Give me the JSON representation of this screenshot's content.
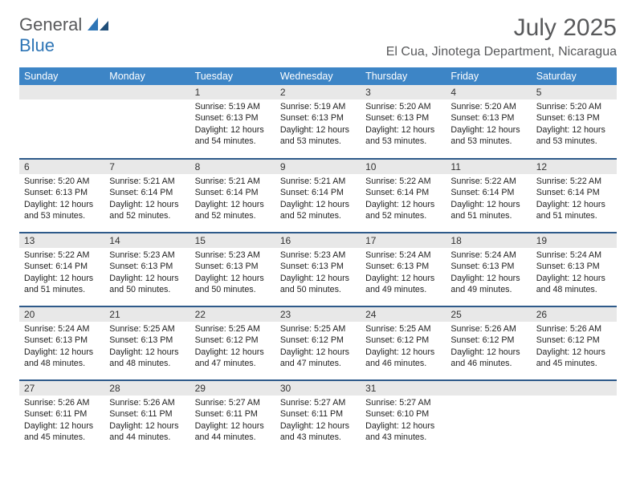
{
  "logo": {
    "text1": "General",
    "text2": "Blue",
    "gray_color": "#58595b",
    "blue_color": "#2e75b6"
  },
  "header": {
    "month_title": "July 2025",
    "location": "El Cua, Jinotega Department, Nicaragua"
  },
  "styling": {
    "header_bg": "#3d85c6",
    "header_fg": "#ffffff",
    "daynum_bg": "#e8e8e8",
    "week_border": "#2e5a8a",
    "body_fontsize": 10.7,
    "header_fontsize": 12.5
  },
  "weekdays": [
    "Sunday",
    "Monday",
    "Tuesday",
    "Wednesday",
    "Thursday",
    "Friday",
    "Saturday"
  ],
  "weeks": [
    [
      null,
      null,
      {
        "num": "1",
        "sunrise": "Sunrise: 5:19 AM",
        "sunset": "Sunset: 6:13 PM",
        "day1": "Daylight: 12 hours",
        "day2": "and 54 minutes."
      },
      {
        "num": "2",
        "sunrise": "Sunrise: 5:19 AM",
        "sunset": "Sunset: 6:13 PM",
        "day1": "Daylight: 12 hours",
        "day2": "and 53 minutes."
      },
      {
        "num": "3",
        "sunrise": "Sunrise: 5:20 AM",
        "sunset": "Sunset: 6:13 PM",
        "day1": "Daylight: 12 hours",
        "day2": "and 53 minutes."
      },
      {
        "num": "4",
        "sunrise": "Sunrise: 5:20 AM",
        "sunset": "Sunset: 6:13 PM",
        "day1": "Daylight: 12 hours",
        "day2": "and 53 minutes."
      },
      {
        "num": "5",
        "sunrise": "Sunrise: 5:20 AM",
        "sunset": "Sunset: 6:13 PM",
        "day1": "Daylight: 12 hours",
        "day2": "and 53 minutes."
      }
    ],
    [
      {
        "num": "6",
        "sunrise": "Sunrise: 5:20 AM",
        "sunset": "Sunset: 6:13 PM",
        "day1": "Daylight: 12 hours",
        "day2": "and 53 minutes."
      },
      {
        "num": "7",
        "sunrise": "Sunrise: 5:21 AM",
        "sunset": "Sunset: 6:14 PM",
        "day1": "Daylight: 12 hours",
        "day2": "and 52 minutes."
      },
      {
        "num": "8",
        "sunrise": "Sunrise: 5:21 AM",
        "sunset": "Sunset: 6:14 PM",
        "day1": "Daylight: 12 hours",
        "day2": "and 52 minutes."
      },
      {
        "num": "9",
        "sunrise": "Sunrise: 5:21 AM",
        "sunset": "Sunset: 6:14 PM",
        "day1": "Daylight: 12 hours",
        "day2": "and 52 minutes."
      },
      {
        "num": "10",
        "sunrise": "Sunrise: 5:22 AM",
        "sunset": "Sunset: 6:14 PM",
        "day1": "Daylight: 12 hours",
        "day2": "and 52 minutes."
      },
      {
        "num": "11",
        "sunrise": "Sunrise: 5:22 AM",
        "sunset": "Sunset: 6:14 PM",
        "day1": "Daylight: 12 hours",
        "day2": "and 51 minutes."
      },
      {
        "num": "12",
        "sunrise": "Sunrise: 5:22 AM",
        "sunset": "Sunset: 6:14 PM",
        "day1": "Daylight: 12 hours",
        "day2": "and 51 minutes."
      }
    ],
    [
      {
        "num": "13",
        "sunrise": "Sunrise: 5:22 AM",
        "sunset": "Sunset: 6:14 PM",
        "day1": "Daylight: 12 hours",
        "day2": "and 51 minutes."
      },
      {
        "num": "14",
        "sunrise": "Sunrise: 5:23 AM",
        "sunset": "Sunset: 6:13 PM",
        "day1": "Daylight: 12 hours",
        "day2": "and 50 minutes."
      },
      {
        "num": "15",
        "sunrise": "Sunrise: 5:23 AM",
        "sunset": "Sunset: 6:13 PM",
        "day1": "Daylight: 12 hours",
        "day2": "and 50 minutes."
      },
      {
        "num": "16",
        "sunrise": "Sunrise: 5:23 AM",
        "sunset": "Sunset: 6:13 PM",
        "day1": "Daylight: 12 hours",
        "day2": "and 50 minutes."
      },
      {
        "num": "17",
        "sunrise": "Sunrise: 5:24 AM",
        "sunset": "Sunset: 6:13 PM",
        "day1": "Daylight: 12 hours",
        "day2": "and 49 minutes."
      },
      {
        "num": "18",
        "sunrise": "Sunrise: 5:24 AM",
        "sunset": "Sunset: 6:13 PM",
        "day1": "Daylight: 12 hours",
        "day2": "and 49 minutes."
      },
      {
        "num": "19",
        "sunrise": "Sunrise: 5:24 AM",
        "sunset": "Sunset: 6:13 PM",
        "day1": "Daylight: 12 hours",
        "day2": "and 48 minutes."
      }
    ],
    [
      {
        "num": "20",
        "sunrise": "Sunrise: 5:24 AM",
        "sunset": "Sunset: 6:13 PM",
        "day1": "Daylight: 12 hours",
        "day2": "and 48 minutes."
      },
      {
        "num": "21",
        "sunrise": "Sunrise: 5:25 AM",
        "sunset": "Sunset: 6:13 PM",
        "day1": "Daylight: 12 hours",
        "day2": "and 48 minutes."
      },
      {
        "num": "22",
        "sunrise": "Sunrise: 5:25 AM",
        "sunset": "Sunset: 6:12 PM",
        "day1": "Daylight: 12 hours",
        "day2": "and 47 minutes."
      },
      {
        "num": "23",
        "sunrise": "Sunrise: 5:25 AM",
        "sunset": "Sunset: 6:12 PM",
        "day1": "Daylight: 12 hours",
        "day2": "and 47 minutes."
      },
      {
        "num": "24",
        "sunrise": "Sunrise: 5:25 AM",
        "sunset": "Sunset: 6:12 PM",
        "day1": "Daylight: 12 hours",
        "day2": "and 46 minutes."
      },
      {
        "num": "25",
        "sunrise": "Sunrise: 5:26 AM",
        "sunset": "Sunset: 6:12 PM",
        "day1": "Daylight: 12 hours",
        "day2": "and 46 minutes."
      },
      {
        "num": "26",
        "sunrise": "Sunrise: 5:26 AM",
        "sunset": "Sunset: 6:12 PM",
        "day1": "Daylight: 12 hours",
        "day2": "and 45 minutes."
      }
    ],
    [
      {
        "num": "27",
        "sunrise": "Sunrise: 5:26 AM",
        "sunset": "Sunset: 6:11 PM",
        "day1": "Daylight: 12 hours",
        "day2": "and 45 minutes."
      },
      {
        "num": "28",
        "sunrise": "Sunrise: 5:26 AM",
        "sunset": "Sunset: 6:11 PM",
        "day1": "Daylight: 12 hours",
        "day2": "and 44 minutes."
      },
      {
        "num": "29",
        "sunrise": "Sunrise: 5:27 AM",
        "sunset": "Sunset: 6:11 PM",
        "day1": "Daylight: 12 hours",
        "day2": "and 44 minutes."
      },
      {
        "num": "30",
        "sunrise": "Sunrise: 5:27 AM",
        "sunset": "Sunset: 6:11 PM",
        "day1": "Daylight: 12 hours",
        "day2": "and 43 minutes."
      },
      {
        "num": "31",
        "sunrise": "Sunrise: 5:27 AM",
        "sunset": "Sunset: 6:10 PM",
        "day1": "Daylight: 12 hours",
        "day2": "and 43 minutes."
      },
      null,
      null
    ]
  ]
}
